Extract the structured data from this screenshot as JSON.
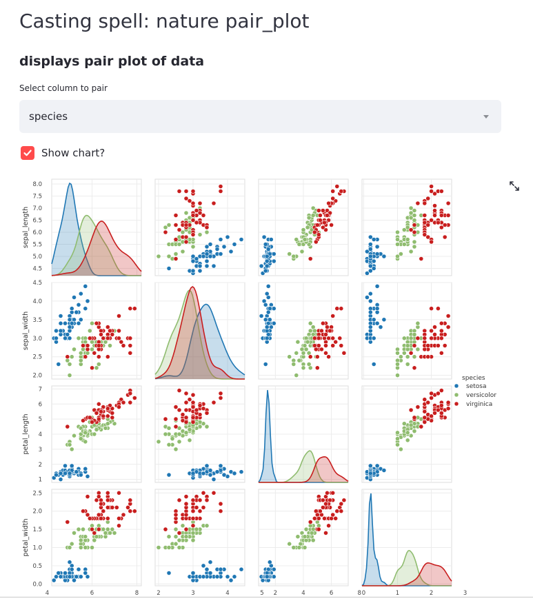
{
  "page": {
    "title": "Casting spell: nature pair_plot",
    "subtitle": "displays pair plot of data",
    "select_label": "Select column to pair",
    "select_value": "species",
    "checkbox_label": "Show chart?",
    "checkbox_checked": true,
    "expand_icon": "expand-icon"
  },
  "colors": {
    "accent": "#ff4b4b",
    "select_bg": "#f0f2f6",
    "setosa": "#1f77b4",
    "versicolor": "#8fbc6f",
    "virginica": "#c81e1e"
  },
  "chart_data": {
    "type": "scatter",
    "variables": [
      "sepal_length",
      "sepal_width",
      "petal_length",
      "petal_width"
    ],
    "hue": "species",
    "legend": {
      "title": "species",
      "entries": [
        "setosa",
        "versicolor",
        "virginica"
      ],
      "placement": "right"
    },
    "grid": true,
    "axes": {
      "sepal_length": {
        "range": [
          4.2,
          8.2
        ],
        "ticks": [
          "4.5",
          "5.0",
          "5.5",
          "6.0",
          "6.5",
          "7.0",
          "7.5",
          "8.0"
        ],
        "xticks": [
          "4",
          "6",
          "8"
        ]
      },
      "sepal_width": {
        "range": [
          1.9,
          4.5
        ],
        "ticks": [
          "2.0",
          "2.5",
          "3.0",
          "3.5",
          "4.0",
          "4.5"
        ],
        "xticks": [
          "2",
          "3",
          "4",
          "5"
        ]
      },
      "petal_length": {
        "range": [
          0.8,
          7.2
        ],
        "ticks": [
          "1",
          "2",
          "3",
          "4",
          "5",
          "6",
          "7"
        ],
        "xticks": [
          "2",
          "4",
          "6",
          "8"
        ]
      },
      "petal_width": {
        "range": [
          -0.05,
          2.6
        ],
        "ticks": [
          "0.0",
          "0.5",
          "1.0",
          "1.5",
          "2.0",
          "2.5"
        ],
        "xticks": [
          "0",
          "1",
          "2",
          "3"
        ]
      }
    },
    "series": [
      {
        "name": "setosa",
        "points": [
          [
            5.1,
            3.5,
            1.4,
            0.2
          ],
          [
            4.9,
            3.0,
            1.4,
            0.2
          ],
          [
            4.7,
            3.2,
            1.3,
            0.2
          ],
          [
            4.6,
            3.1,
            1.5,
            0.2
          ],
          [
            5.0,
            3.6,
            1.4,
            0.2
          ],
          [
            5.4,
            3.9,
            1.7,
            0.4
          ],
          [
            4.6,
            3.4,
            1.4,
            0.3
          ],
          [
            5.0,
            3.4,
            1.5,
            0.2
          ],
          [
            4.4,
            2.9,
            1.4,
            0.2
          ],
          [
            4.9,
            3.1,
            1.5,
            0.1
          ],
          [
            5.4,
            3.7,
            1.5,
            0.2
          ],
          [
            4.8,
            3.4,
            1.6,
            0.2
          ],
          [
            4.8,
            3.0,
            1.4,
            0.1
          ],
          [
            4.3,
            3.0,
            1.1,
            0.1
          ],
          [
            5.8,
            4.0,
            1.2,
            0.2
          ],
          [
            5.7,
            4.4,
            1.5,
            0.4
          ],
          [
            5.4,
            3.9,
            1.3,
            0.4
          ],
          [
            5.1,
            3.5,
            1.4,
            0.3
          ],
          [
            5.7,
            3.8,
            1.7,
            0.3
          ],
          [
            5.1,
            3.8,
            1.5,
            0.3
          ],
          [
            5.4,
            3.4,
            1.7,
            0.2
          ],
          [
            5.1,
            3.7,
            1.5,
            0.4
          ],
          [
            4.6,
            3.6,
            1.0,
            0.2
          ],
          [
            5.1,
            3.3,
            1.7,
            0.5
          ],
          [
            4.8,
            3.4,
            1.9,
            0.2
          ],
          [
            5.0,
            3.0,
            1.6,
            0.2
          ],
          [
            5.0,
            3.4,
            1.6,
            0.4
          ],
          [
            5.2,
            3.5,
            1.5,
            0.2
          ],
          [
            5.2,
            3.4,
            1.4,
            0.2
          ],
          [
            4.7,
            3.2,
            1.6,
            0.2
          ],
          [
            4.8,
            3.1,
            1.6,
            0.2
          ],
          [
            5.4,
            3.4,
            1.5,
            0.4
          ],
          [
            5.2,
            4.1,
            1.5,
            0.1
          ],
          [
            5.5,
            4.2,
            1.4,
            0.2
          ],
          [
            4.9,
            3.1,
            1.5,
            0.2
          ],
          [
            5.0,
            3.2,
            1.2,
            0.2
          ],
          [
            5.5,
            3.5,
            1.3,
            0.2
          ],
          [
            4.4,
            3.0,
            1.3,
            0.2
          ],
          [
            5.1,
            3.4,
            1.5,
            0.2
          ],
          [
            5.0,
            3.5,
            1.3,
            0.3
          ],
          [
            4.5,
            2.3,
            1.3,
            0.3
          ],
          [
            4.4,
            3.2,
            1.3,
            0.2
          ],
          [
            5.0,
            3.5,
            1.6,
            0.6
          ],
          [
            5.1,
            3.8,
            1.9,
            0.4
          ],
          [
            4.8,
            3.0,
            1.4,
            0.3
          ],
          [
            5.1,
            3.8,
            1.6,
            0.2
          ],
          [
            4.6,
            3.2,
            1.4,
            0.2
          ],
          [
            5.3,
            3.7,
            1.5,
            0.2
          ],
          [
            5.0,
            3.3,
            1.4,
            0.2
          ]
        ]
      },
      {
        "name": "versicolor",
        "points": [
          [
            7.0,
            3.2,
            4.7,
            1.4
          ],
          [
            6.4,
            3.2,
            4.5,
            1.5
          ],
          [
            6.9,
            3.1,
            4.9,
            1.5
          ],
          [
            5.5,
            2.3,
            4.0,
            1.3
          ],
          [
            6.5,
            2.8,
            4.6,
            1.5
          ],
          [
            5.7,
            2.8,
            4.5,
            1.3
          ],
          [
            6.3,
            3.3,
            4.7,
            1.6
          ],
          [
            4.9,
            2.4,
            3.3,
            1.0
          ],
          [
            6.6,
            2.9,
            4.6,
            1.3
          ],
          [
            5.2,
            2.7,
            3.9,
            1.4
          ],
          [
            5.0,
            2.0,
            3.5,
            1.0
          ],
          [
            5.9,
            3.0,
            4.2,
            1.5
          ],
          [
            6.0,
            2.2,
            4.0,
            1.0
          ],
          [
            6.1,
            2.9,
            4.7,
            1.4
          ],
          [
            5.6,
            2.9,
            3.6,
            1.3
          ],
          [
            6.7,
            3.1,
            4.4,
            1.4
          ],
          [
            5.6,
            3.0,
            4.5,
            1.5
          ],
          [
            5.8,
            2.7,
            4.1,
            1.0
          ],
          [
            6.2,
            2.2,
            4.5,
            1.5
          ],
          [
            5.6,
            2.5,
            3.9,
            1.1
          ],
          [
            5.9,
            3.2,
            4.8,
            1.8
          ],
          [
            6.1,
            2.8,
            4.0,
            1.3
          ],
          [
            6.3,
            2.5,
            4.9,
            1.5
          ],
          [
            6.1,
            2.8,
            4.7,
            1.2
          ],
          [
            6.4,
            2.9,
            4.3,
            1.3
          ],
          [
            6.6,
            3.0,
            4.4,
            1.4
          ],
          [
            6.8,
            2.8,
            4.8,
            1.4
          ],
          [
            6.7,
            3.0,
            5.0,
            1.7
          ],
          [
            6.0,
            2.9,
            4.5,
            1.5
          ],
          [
            5.7,
            2.6,
            3.5,
            1.0
          ],
          [
            5.5,
            2.4,
            3.8,
            1.1
          ],
          [
            5.5,
            2.4,
            3.7,
            1.0
          ],
          [
            5.8,
            2.7,
            3.9,
            1.2
          ],
          [
            6.0,
            2.7,
            5.1,
            1.6
          ],
          [
            5.4,
            3.0,
            4.5,
            1.5
          ],
          [
            6.0,
            3.4,
            4.5,
            1.6
          ],
          [
            6.7,
            3.1,
            4.7,
            1.5
          ],
          [
            6.3,
            2.3,
            4.4,
            1.3
          ],
          [
            5.6,
            3.0,
            4.1,
            1.3
          ],
          [
            5.5,
            2.5,
            4.0,
            1.3
          ],
          [
            5.5,
            2.6,
            4.4,
            1.2
          ],
          [
            6.1,
            3.0,
            4.6,
            1.4
          ],
          [
            5.8,
            2.6,
            4.0,
            1.2
          ],
          [
            5.0,
            2.3,
            3.3,
            1.0
          ],
          [
            5.6,
            2.7,
            4.2,
            1.3
          ],
          [
            5.7,
            3.0,
            4.2,
            1.2
          ],
          [
            5.7,
            2.9,
            4.2,
            1.3
          ],
          [
            6.2,
            2.9,
            4.3,
            1.3
          ],
          [
            5.1,
            2.5,
            3.0,
            1.1
          ],
          [
            5.7,
            2.8,
            4.1,
            1.3
          ]
        ]
      },
      {
        "name": "virginica",
        "points": [
          [
            6.3,
            3.3,
            6.0,
            2.5
          ],
          [
            5.8,
            2.7,
            5.1,
            1.9
          ],
          [
            7.1,
            3.0,
            5.9,
            2.1
          ],
          [
            6.3,
            2.9,
            5.6,
            1.8
          ],
          [
            6.5,
            3.0,
            5.8,
            2.2
          ],
          [
            7.6,
            3.0,
            6.6,
            2.1
          ],
          [
            4.9,
            2.5,
            4.5,
            1.7
          ],
          [
            7.3,
            2.9,
            6.3,
            1.8
          ],
          [
            6.7,
            2.5,
            5.8,
            1.8
          ],
          [
            7.2,
            3.6,
            6.1,
            2.5
          ],
          [
            6.5,
            3.2,
            5.1,
            2.0
          ],
          [
            6.4,
            2.7,
            5.3,
            1.9
          ],
          [
            6.8,
            3.0,
            5.5,
            2.1
          ],
          [
            5.7,
            2.5,
            5.0,
            2.0
          ],
          [
            5.8,
            2.8,
            5.1,
            2.4
          ],
          [
            6.4,
            3.2,
            5.3,
            2.3
          ],
          [
            6.5,
            3.0,
            5.5,
            1.8
          ],
          [
            7.7,
            3.8,
            6.7,
            2.2
          ],
          [
            7.7,
            2.6,
            6.9,
            2.3
          ],
          [
            6.0,
            2.2,
            5.0,
            1.5
          ],
          [
            6.9,
            3.2,
            5.7,
            2.3
          ],
          [
            5.6,
            2.8,
            4.9,
            2.0
          ],
          [
            7.7,
            2.8,
            6.7,
            2.0
          ],
          [
            6.3,
            2.7,
            4.9,
            1.8
          ],
          [
            6.7,
            3.3,
            5.7,
            2.1
          ],
          [
            7.2,
            3.2,
            6.0,
            1.8
          ],
          [
            6.2,
            2.8,
            4.8,
            1.8
          ],
          [
            6.1,
            3.0,
            4.9,
            1.8
          ],
          [
            6.4,
            2.8,
            5.6,
            2.1
          ],
          [
            7.2,
            3.0,
            5.8,
            1.6
          ],
          [
            7.4,
            2.8,
            6.1,
            1.9
          ],
          [
            7.9,
            3.8,
            6.4,
            2.0
          ],
          [
            6.4,
            2.8,
            5.6,
            2.2
          ],
          [
            6.3,
            2.8,
            5.1,
            1.5
          ],
          [
            6.1,
            2.6,
            5.6,
            1.4
          ],
          [
            7.7,
            3.0,
            6.1,
            2.3
          ],
          [
            6.3,
            3.4,
            5.6,
            2.4
          ],
          [
            6.4,
            3.1,
            5.5,
            1.8
          ],
          [
            6.0,
            3.0,
            4.8,
            1.8
          ],
          [
            6.9,
            3.1,
            5.4,
            2.1
          ],
          [
            6.7,
            3.1,
            5.6,
            2.4
          ],
          [
            6.9,
            3.1,
            5.1,
            2.3
          ],
          [
            6.8,
            3.2,
            5.9,
            2.3
          ],
          [
            6.7,
            3.3,
            5.7,
            2.5
          ],
          [
            6.7,
            3.0,
            5.2,
            2.3
          ],
          [
            6.3,
            2.5,
            5.0,
            1.9
          ],
          [
            6.5,
            3.0,
            5.2,
            2.0
          ],
          [
            6.2,
            3.4,
            5.4,
            2.3
          ],
          [
            5.9,
            3.0,
            5.1,
            1.8
          ]
        ]
      }
    ]
  }
}
